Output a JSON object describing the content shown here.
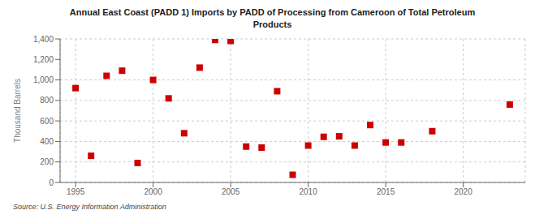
{
  "chart_data": {
    "type": "scatter",
    "title": "Annual East Coast (PADD 1) Imports by PADD of Processing from Cameroon of Total Petroleum\nProducts",
    "y_label": "Thousand Barrels",
    "annotations": [
      "Source: U.S. Energy Information Administration"
    ],
    "x": [
      1995,
      1996,
      1997,
      1998,
      1999,
      2000,
      2001,
      2002,
      2003,
      2004,
      2005,
      2006,
      2007,
      2008,
      2009,
      2010,
      2011,
      2012,
      2013,
      2014,
      2015,
      2016,
      2018,
      2023
    ],
    "values": [
      920,
      260,
      1040,
      1090,
      190,
      1000,
      820,
      480,
      1120,
      1390,
      1380,
      350,
      340,
      890,
      75,
      360,
      445,
      450,
      360,
      560,
      390,
      390,
      500,
      760
    ],
    "color": "#cc0000",
    "marker": "square",
    "xlim": [
      1994.0,
      2024.0
    ],
    "xticks": [
      1995,
      2000,
      2005,
      2010,
      2015,
      2020
    ],
    "ylim": [
      0,
      1400
    ],
    "yticks": [
      0,
      200,
      400,
      600,
      800,
      {
        "value": 1000,
        "label": "1,000"
      },
      {
        "value": 1200,
        "label": "1,200"
      },
      {
        "value": 1400,
        "label": "1,400"
      }
    ],
    "grid": true
  }
}
